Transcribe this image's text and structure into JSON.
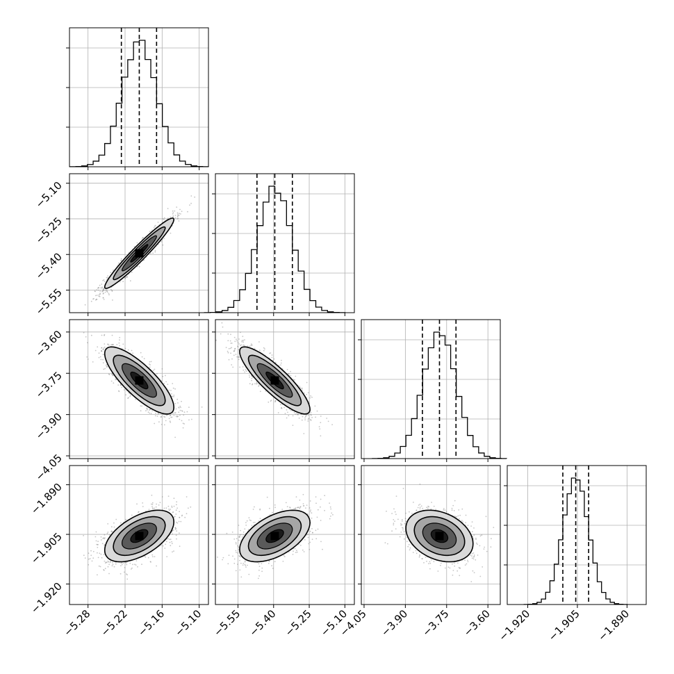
{
  "chart_data": {
    "type": "corner",
    "description_visible": "none",
    "params": [
      {
        "range": [
          -5.31,
          -5.085
        ],
        "ticks": [
          -5.28,
          -5.22,
          -5.16,
          -5.1
        ],
        "tick_labels": [
          "−5.28",
          "−5.22",
          "−5.16",
          "−5.10"
        ],
        "quantiles": [
          -5.226,
          -5.197,
          -5.169
        ],
        "mean": -5.197,
        "sd": 0.028
      },
      {
        "range": [
          -5.645,
          -5.06
        ],
        "ticks": [
          -5.55,
          -5.4,
          -5.25,
          -5.1
        ],
        "tick_labels": [
          "−5.55",
          "−5.40",
          "−5.25",
          "−5.10"
        ],
        "quantiles": [
          -5.47,
          -5.395,
          -5.321
        ],
        "mean": -5.395,
        "sd": 0.074
      },
      {
        "range": [
          -4.06,
          -3.555
        ],
        "ticks": [
          -4.05,
          -3.9,
          -3.75,
          -3.6
        ],
        "tick_labels": [
          "−4.05",
          "−3.90",
          "−3.75",
          "−3.60"
        ],
        "quantiles": [
          -3.838,
          -3.776,
          -3.716
        ],
        "mean": -3.776,
        "sd": 0.061
      },
      {
        "range": [
          -1.9262,
          -1.8842
        ],
        "ticks": [
          -1.92,
          -1.905,
          -1.89
        ],
        "tick_labels": [
          "−1.920",
          "−1.905",
          "−1.890"
        ],
        "quantiles": [
          -1.9094,
          -1.9055,
          -1.9016
        ],
        "mean": -1.9055,
        "sd": 0.0039
      }
    ],
    "correlations": [
      {
        "pair": [
          0,
          1
        ],
        "rho": 0.96
      },
      {
        "pair": [
          0,
          2
        ],
        "rho": -0.8
      },
      {
        "pair": [
          1,
          2
        ],
        "rho": -0.86
      },
      {
        "pair": [
          0,
          3
        ],
        "rho": 0.55
      },
      {
        "pair": [
          1,
          3
        ],
        "rho": 0.52
      },
      {
        "pair": [
          2,
          3
        ],
        "rho": -0.3
      }
    ],
    "grid": true,
    "contour_levels_sigma": [
      0.5,
      1.0,
      1.5,
      2.0
    ],
    "colors": {
      "line": "#000000",
      "points": "#7f7f7f",
      "grid": "#b0b0b0"
    }
  }
}
